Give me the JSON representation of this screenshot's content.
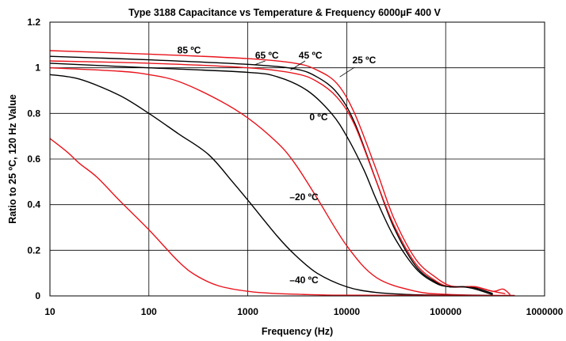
{
  "chart_data": {
    "type": "line",
    "title": "Type 3188 Capacitance vs Temperature & Frequency 6000µF 400 V",
    "xlabel": "Frequency (Hz)",
    "ylabel": "Ratio to 25 ºC, 120 Hz Value",
    "x_scale": "log",
    "xlim": [
      10,
      1000000
    ],
    "ylim": [
      0,
      1.2
    ],
    "grid": true,
    "x_ticks": [
      10,
      100,
      1000,
      10000,
      100000,
      1000000
    ],
    "x_tick_labels": [
      "10",
      "100",
      "1000",
      "10000",
      "100000",
      "1000000"
    ],
    "y_ticks": [
      0,
      0.2,
      0.4,
      0.6,
      0.8,
      1,
      1.2
    ],
    "y_tick_labels": [
      "0",
      "0.2",
      "0.4",
      "0.6",
      "0.8",
      "1",
      "1.2"
    ],
    "colors": {
      "red": "#e8141c",
      "black": "#000000"
    },
    "series": [
      {
        "label": "85 ºC",
        "color": "#e8141c",
        "x": [
          10,
          100,
          1000,
          3000,
          5000,
          8000,
          12000,
          20000,
          30000,
          50000,
          80000,
          110000,
          150000,
          200000,
          300000,
          400000
        ],
        "y": [
          1.075,
          1.06,
          1.04,
          1.02,
          0.99,
          0.93,
          0.8,
          0.55,
          0.34,
          0.16,
          0.08,
          0.045,
          0.04,
          0.04,
          0.02,
          0.01
        ]
      },
      {
        "label": "65 ºC",
        "color": "#000000",
        "x": [
          10,
          100,
          1000,
          3000,
          5000,
          8000,
          12000,
          20000,
          30000,
          50000,
          80000,
          110000,
          150000,
          200000,
          300000
        ],
        "y": [
          1.05,
          1.035,
          1.015,
          0.995,
          0.96,
          0.89,
          0.76,
          0.5,
          0.3,
          0.13,
          0.06,
          0.04,
          0.04,
          0.035,
          0.01
        ]
      },
      {
        "label": "45 ºC",
        "color": "#e8141c",
        "x": [
          10,
          100,
          1000,
          3000,
          5000,
          8000,
          12000,
          20000,
          30000,
          50000,
          80000,
          110000,
          150000,
          200000,
          300000,
          380000,
          450000
        ],
        "y": [
          1.03,
          1.02,
          1.0,
          0.975,
          0.94,
          0.87,
          0.75,
          0.5,
          0.31,
          0.14,
          0.065,
          0.04,
          0.04,
          0.04,
          0.02,
          0.03,
          0.005
        ]
      },
      {
        "label": "25 ºC",
        "color": "#000000",
        "x": [
          10,
          100,
          1000,
          2000,
          4000,
          7000,
          10000,
          15000,
          20000,
          30000,
          50000,
          80000,
          110000,
          150000,
          200000,
          300000
        ],
        "y": [
          1.02,
          1.0,
          0.98,
          0.96,
          0.9,
          0.8,
          0.7,
          0.55,
          0.42,
          0.26,
          0.12,
          0.055,
          0.04,
          0.04,
          0.03,
          0.005
        ]
      },
      {
        "label": "0 ºC",
        "color": "#e8141c",
        "x": [
          10,
          50,
          100,
          200,
          500,
          1000,
          2000,
          3000,
          5000,
          10000,
          20000,
          50000,
          100000,
          200000,
          500000
        ],
        "y": [
          1.0,
          0.985,
          0.97,
          0.94,
          0.86,
          0.78,
          0.67,
          0.58,
          0.43,
          0.22,
          0.08,
          0.02,
          0.007,
          0.003,
          0.002
        ]
      },
      {
        "label": "–20 ºC",
        "color": "#000000",
        "x": [
          10,
          20,
          50,
          100,
          200,
          400,
          700,
          1000,
          2000,
          3000,
          5000,
          10000,
          20000,
          50000,
          100000,
          300000
        ],
        "y": [
          0.97,
          0.95,
          0.88,
          0.8,
          0.71,
          0.62,
          0.5,
          0.42,
          0.26,
          0.18,
          0.1,
          0.04,
          0.015,
          0.005,
          0.003,
          0.002
        ]
      },
      {
        "label": "–40 ºC",
        "color": "#e8141c",
        "x": [
          10,
          15,
          20,
          30,
          50,
          100,
          200,
          300,
          500,
          1000,
          2000,
          5000,
          10000,
          100000,
          500000
        ],
        "y": [
          0.69,
          0.63,
          0.58,
          0.52,
          0.42,
          0.29,
          0.15,
          0.09,
          0.045,
          0.02,
          0.01,
          0.005,
          0.003,
          0.002,
          0.001
        ]
      }
    ],
    "annotations": [
      {
        "text": "85 ºC",
        "x": 255,
        "y": 1.063
      },
      {
        "text": "65 ºC",
        "x": 1560,
        "y": 1.04
      },
      {
        "text": "45 ºC",
        "x": 4300,
        "y": 1.04
      },
      {
        "text": "25 ºC",
        "x": 15000,
        "y": 1.02
      },
      {
        "text": "0 ºC",
        "x": 5200,
        "y": 0.77
      },
      {
        "text": "–20 ºC",
        "x": 3700,
        "y": 0.42
      },
      {
        "text": "–40 ºC",
        "x": 3700,
        "y": 0.055
      }
    ]
  }
}
